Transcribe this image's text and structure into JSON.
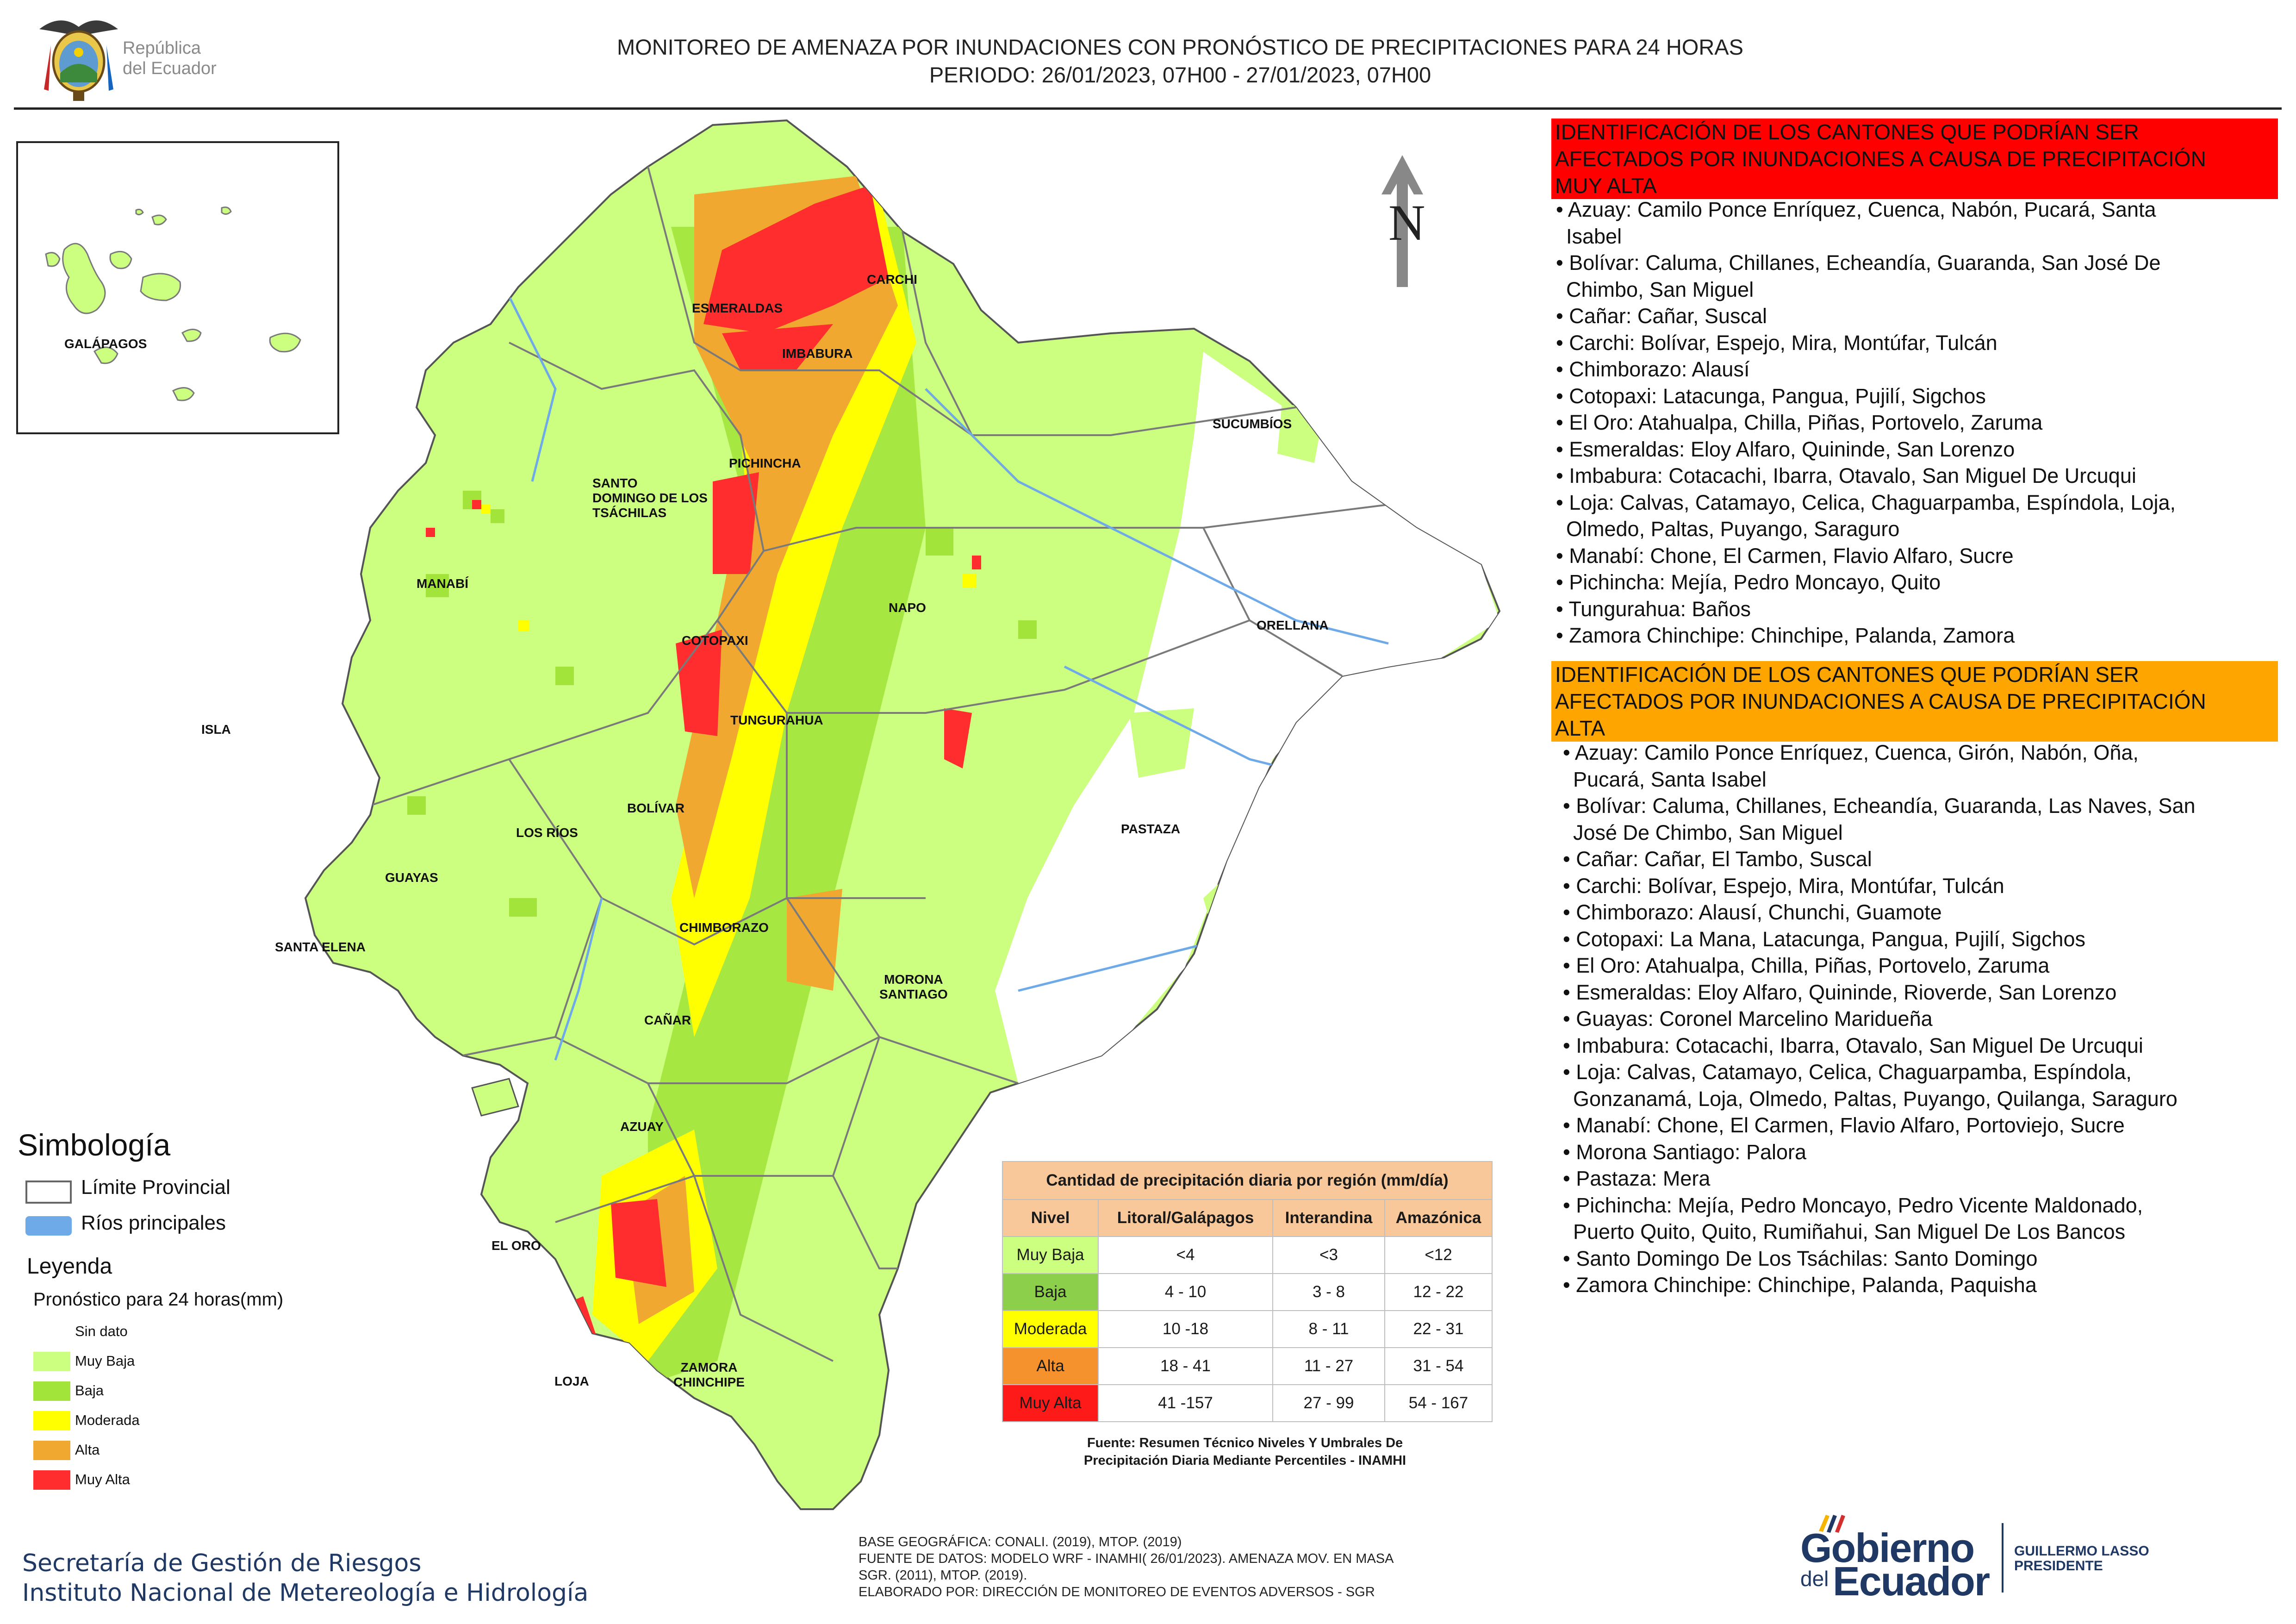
{
  "header": {
    "title_line1": "MONITOREO DE AMENAZA POR INUNDACIONES  CON PRONÓSTICO DE  PRECIPITACIONES PARA 24 HORAS",
    "title_line2": "PERIODO: 26/01/2023, 07H00 - 27/01/2023, 07H00",
    "logo_text_line1": "República",
    "logo_text_line2": "del Ecuador"
  },
  "colors": {
    "muy_baja": "#ccff80",
    "baja": "#a3e43a",
    "moderada": "#ffff00",
    "alta": "#f0a830",
    "muy_alta": "#ff2d2d",
    "rivers": "#6ea9e8",
    "boundary": "#7a7a7a",
    "table_header": "#f8c89a",
    "panel_red": "#ff0000",
    "panel_orange": "#ffa500",
    "footer_blue": "#1f3864"
  },
  "map": {
    "labels": {
      "galapagos": "GALÁPAGOS",
      "esmeraldas": "ESMERALDAS",
      "carchi": "CARCHI",
      "imbabura": "IMBABURA",
      "sucumbios": "SUCUMBÍOS",
      "pichincha": "PICHINCHA",
      "santo_domingo_1": "SANTO",
      "santo_domingo_2": "DOMINGO DE LOS",
      "santo_domingo_3": "TSÁCHILAS",
      "manabi": "MANABÍ",
      "napo": "NAPO",
      "orellana": "ORELLANA",
      "cotopaxi": "COTOPAXI",
      "tungurahua": "TUNGURAHUA",
      "isla": "ISLA",
      "bolivar": "BOLÍVAR",
      "los_rios": "LOS RÍOS",
      "guayas": "GUAYAS",
      "pastaza": "PASTAZA",
      "chimborazo": "CHIMBORAZO",
      "santa_elena": "SANTA ELENA",
      "morona_1": "MORONA",
      "morona_2": "SANTIAGO",
      "canar": "CAÑAR",
      "azuay": "AZUAY",
      "el_oro": "EL ORO",
      "loja": "LOJA",
      "zamora_1": "ZAMORA",
      "zamora_2": "CHINCHIPE"
    },
    "north_label": "N"
  },
  "symbology": {
    "title": "Simbología",
    "limite": "Límite Provincial",
    "rios": "Ríos principales",
    "leyenda_title": "Leyenda",
    "pronostico": "Pronóstico para 24 horas(mm)",
    "items": [
      "Sin dato",
      " Muy Baja",
      "Baja",
      "Moderada",
      "Alta",
      "Muy Alta"
    ]
  },
  "table": {
    "title": "Cantidad de precipitación diaria por región (mm/día)",
    "headers": [
      "Nivel",
      "Litoral/Galápagos",
      "Interandina",
      "Amazónica"
    ],
    "rows": [
      {
        "nivel": "Muy Baja",
        "litoral": "<4",
        "interandina": "<3",
        "amazonica": "<12"
      },
      {
        "nivel": "Baja",
        "litoral": "4 - 10",
        "interandina": "3 - 8",
        "amazonica": "12 - 22"
      },
      {
        "nivel": "Moderada",
        "litoral": "10 -18",
        "interandina": "8 - 11",
        "amazonica": "22 - 31"
      },
      {
        "nivel": "Alta",
        "litoral": "18 - 41",
        "interandina": "11 - 27",
        "amazonica": "31 - 54"
      },
      {
        "nivel": "Muy Alta",
        "litoral": "41 -157",
        "interandina": "27 - 99",
        "amazonica": "54 - 167"
      }
    ],
    "source_line1": "Fuente: Resumen Técnico Niveles Y Umbrales De",
    "source_line2": "Precipitación Diaria Mediante Percentiles - INAMHI"
  },
  "panel_muy_alta": {
    "header_lines": [
      "IDENTIFICACIÓN DE LOS CANTONES QUE PODRÍAN SER",
      "AFECTADOS POR INUNDACIONES  A CAUSA DE PRECIPITACIÓN",
      "MUY ALTA"
    ],
    "lines": [
      "• Azuay: Camilo Ponce Enríquez, Cuenca, Nabón, Pucará, Santa",
      "  Isabel",
      "• Bolívar: Caluma, Chillanes, Echeandía, Guaranda, San José De",
      "  Chimbo, San Miguel",
      "• Cañar: Cañar, Suscal",
      "• Carchi: Bolívar, Espejo, Mira, Montúfar, Tulcán",
      "• Chimborazo: Alausí",
      "• Cotopaxi: Latacunga, Pangua, Pujilí, Sigchos",
      "• El Oro: Atahualpa, Chilla, Piñas, Portovelo, Zaruma",
      "• Esmeraldas: Eloy Alfaro, Quininde, San Lorenzo",
      "• Imbabura: Cotacachi, Ibarra, Otavalo, San Miguel De Urcuqui",
      "• Loja: Calvas, Catamayo, Celica, Chaguarpamba, Espíndola, Loja,",
      "  Olmedo, Paltas, Puyango, Saraguro",
      "• Manabí: Chone, El Carmen, Flavio Alfaro, Sucre",
      "• Pichincha: Mejía, Pedro Moncayo, Quito",
      "• Tungurahua: Baños",
      "• Zamora Chinchipe: Chinchipe, Palanda, Zamora"
    ]
  },
  "panel_alta": {
    "header_lines": [
      "IDENTIFICACIÓN DE LOS CANTONES QUE  PODRÍAN SER",
      "AFECTADOS POR INUNDACIONES  A CAUSA DE PRECIPITACIÓN",
      "ALTA"
    ],
    "lines": [
      "• Azuay: Camilo Ponce Enríquez, Cuenca, Girón, Nabón, Oña,",
      "  Pucará, Santa Isabel",
      "• Bolívar: Caluma, Chillanes, Echeandía, Guaranda, Las Naves, San",
      "  José De Chimbo, San Miguel",
      "• Cañar: Cañar, El Tambo, Suscal",
      "• Carchi: Bolívar, Espejo, Mira, Montúfar, Tulcán",
      "• Chimborazo: Alausí, Chunchi, Guamote",
      "• Cotopaxi: La Mana, Latacunga, Pangua, Pujilí, Sigchos",
      "• El Oro: Atahualpa, Chilla, Piñas, Portovelo, Zaruma",
      "• Esmeraldas: Eloy Alfaro, Quininde, Rioverde, San Lorenzo",
      "• Guayas: Coronel Marcelino Maridueña",
      "• Imbabura: Cotacachi, Ibarra, Otavalo, San Miguel De Urcuqui",
      "• Loja: Calvas, Catamayo, Celica, Chaguarpamba, Espíndola,",
      "  Gonzanamá, Loja, Olmedo, Paltas, Puyango, Quilanga, Saraguro",
      "• Manabí: Chone, El Carmen, Flavio Alfaro, Portoviejo, Sucre",
      "• Morona Santiago: Palora",
      "• Pastaza: Mera",
      "• Pichincha: Mejía, Pedro Moncayo, Pedro Vicente Maldonado,",
      "  Puerto Quito, Quito, Rumiñahui, San Miguel De Los Bancos",
      "• Santo Domingo De Los Tsáchilas: Santo Domingo",
      "• Zamora Chinchipe: Chinchipe, Palanda, Paquisha"
    ]
  },
  "footer": {
    "org_line1": "Secretaría de Gestión de Riesgos",
    "org_line2": "Instituto Nacional de Metereología e Hidrología",
    "credit_line1": "BASE GEOGRÁFICA: CONALI. (2019), MTOP. (2019)",
    "credit_line2": "FUENTE DE DATOS: MODELO WRF - INAMHI( 26/01/2023).  AMENAZA MOV. EN MASA",
    "credit_line3": "SGR. (2011), MTOP. (2019).",
    "credit_line4": "ELABORADO POR: DIRECCIÓN DE MONITOREO DE EVENTOS ADVERSOS - SGR",
    "gob_line1": "Gobierno",
    "gob_line2": "del",
    "gob_line3": "Ecuador",
    "president_line1": "GUILLERMO LASSO",
    "president_line2": "PRESIDENTE"
  }
}
